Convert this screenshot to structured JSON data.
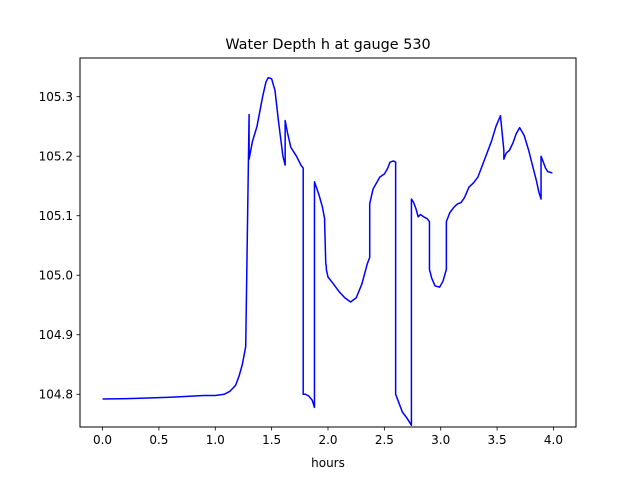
{
  "chart_data": {
    "type": "line",
    "title": "Water Depth h at gauge 530",
    "xlabel": "hours",
    "ylabel": "",
    "xlim": [
      -0.2,
      4.2
    ],
    "ylim": [
      104.745,
      105.365
    ],
    "xticks": [
      0.0,
      0.5,
      1.0,
      1.5,
      2.0,
      2.5,
      3.0,
      3.5,
      4.0
    ],
    "xtick_labels": [
      "0.0",
      "0.5",
      "1.0",
      "1.5",
      "2.0",
      "2.5",
      "3.0",
      "3.5",
      "4.0"
    ],
    "yticks": [
      104.8,
      104.9,
      105.0,
      105.1,
      105.2,
      105.3
    ],
    "ytick_labels": [
      "104.8",
      "104.9",
      "105.0",
      "105.1",
      "105.2",
      "105.3"
    ],
    "grid": false,
    "legend": "none",
    "series": [
      {
        "color": "#0000ff",
        "x": [
          0.0,
          0.3,
          0.6,
          0.9,
          1.0,
          1.08,
          1.13,
          1.18,
          1.21,
          1.24,
          1.27,
          1.3,
          1.3,
          1.305,
          1.33,
          1.37,
          1.42,
          1.45,
          1.47,
          1.5,
          1.53,
          1.56,
          1.6,
          1.62,
          1.62,
          1.64,
          1.67,
          1.72,
          1.76,
          1.78,
          1.78,
          1.8,
          1.83,
          1.86,
          1.88,
          1.88,
          1.92,
          1.95,
          1.97,
          1.97,
          1.98,
          1.985,
          1.985,
          2.0,
          2.05,
          2.1,
          2.15,
          2.2,
          2.25,
          2.3,
          2.35,
          2.37,
          2.37,
          2.4,
          2.43,
          2.46,
          2.5,
          2.53,
          2.55,
          2.58,
          2.6,
          2.6,
          2.63,
          2.66,
          2.7,
          2.74,
          2.74,
          2.76,
          2.78,
          2.8,
          2.82,
          2.85,
          2.88,
          2.9,
          2.9,
          2.92,
          2.95,
          2.99,
          3.02,
          3.05,
          3.05,
          3.08,
          3.12,
          3.15,
          3.18,
          3.21,
          3.25,
          3.29,
          3.33,
          3.37,
          3.41,
          3.45,
          3.49,
          3.53,
          3.56,
          3.56,
          3.58,
          3.61,
          3.64,
          3.67,
          3.7,
          3.74,
          3.78,
          3.82,
          3.85,
          3.87,
          3.89,
          3.89,
          3.91,
          3.93,
          3.95,
          3.99
        ],
        "y": [
          104.792,
          104.793,
          104.795,
          104.798,
          104.798,
          104.8,
          104.805,
          104.815,
          104.83,
          104.85,
          104.88,
          105.27,
          105.195,
          105.2,
          105.225,
          105.25,
          105.3,
          105.325,
          105.332,
          105.33,
          105.31,
          105.26,
          105.2,
          105.185,
          105.26,
          105.24,
          105.215,
          105.2,
          105.185,
          105.18,
          104.8,
          104.8,
          104.797,
          104.79,
          104.778,
          105.157,
          105.135,
          105.115,
          105.095,
          105.09,
          105.02,
          105.015,
          105.01,
          104.997,
          104.985,
          104.972,
          104.962,
          104.955,
          104.962,
          104.985,
          105.02,
          105.03,
          105.12,
          105.145,
          105.155,
          105.165,
          105.17,
          105.18,
          105.19,
          105.192,
          105.19,
          104.8,
          104.785,
          104.77,
          104.76,
          104.748,
          105.128,
          105.122,
          105.112,
          105.098,
          105.102,
          105.098,
          105.095,
          105.09,
          105.01,
          104.995,
          104.982,
          104.98,
          104.99,
          105.01,
          105.09,
          105.105,
          105.115,
          105.12,
          105.122,
          105.13,
          105.148,
          105.155,
          105.165,
          105.185,
          105.205,
          105.225,
          105.25,
          105.268,
          105.21,
          105.195,
          105.205,
          105.21,
          105.222,
          105.238,
          105.248,
          105.235,
          105.21,
          105.18,
          105.158,
          105.14,
          105.128,
          105.2,
          105.19,
          105.18,
          105.174,
          105.172
        ]
      }
    ]
  }
}
